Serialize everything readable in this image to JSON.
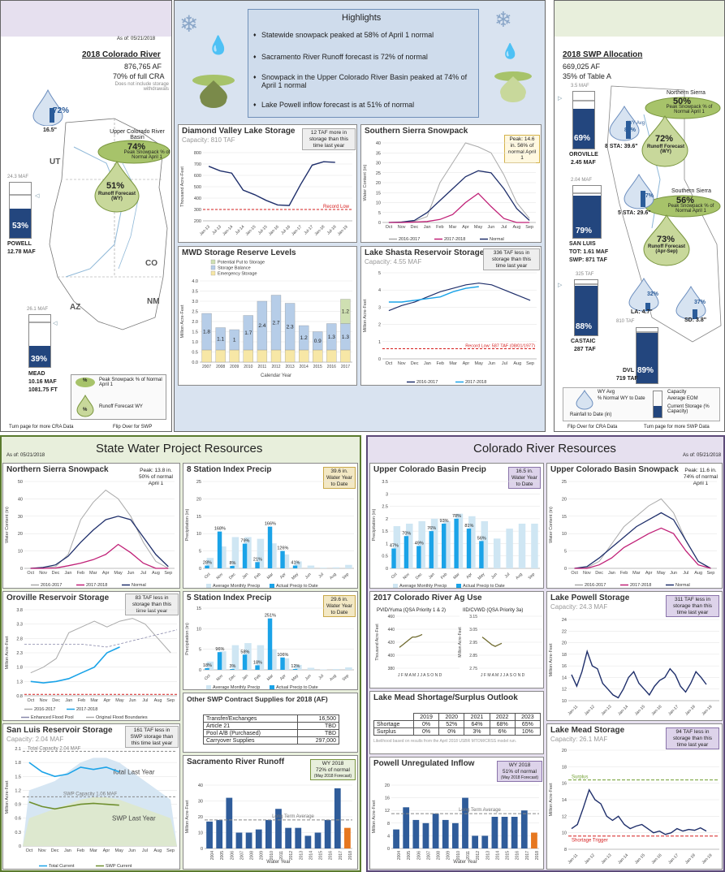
{
  "colorado_panel": {
    "as_of": "As of: 05/21/2018",
    "title": "2018 Colorado River",
    "af": "876,765 AF",
    "pct": "70% of full CRA",
    "note": "Does not include storage withdrawals",
    "precip_pct": "72%",
    "precip_in": "16.5\"",
    "upper_label": "Upper Colorado River Basin",
    "upper_pct": "74%",
    "upper_caption": "Peak Snowpack % of Normal April 1",
    "runoff_pct": "51%",
    "runoff_label": "Runoff Forecast (WY)",
    "states": [
      "UT",
      "CO",
      "AZ",
      "NM"
    ],
    "powell_cap": "24.3 MAF",
    "powell_pct": "53%",
    "powell_name": "POWELL",
    "powell_val": "12.78 MAF",
    "mead_cap": "26.1 MAF",
    "mead_pct": "39%",
    "mead_name": "MEAD",
    "mead_val": "10.16 MAF",
    "mead_ft": "1081.75 FT",
    "legend_pct1": "%",
    "legend_text1": "Peak Snowpack % of Normal April 1",
    "legend_pct2": "%",
    "legend_text2": "Runoff Forecast WY",
    "footer_left": "Turn page for more CRA Data",
    "footer_right": "Flip Over for SWP"
  },
  "highlights": {
    "title": "Highlights",
    "items": [
      "Statewide snowpack peaked at 58% of April 1 normal",
      "Sacramento River Runoff forecast is 72% of normal",
      "Snowpack in the Upper Colorado River Basin peaked at 74% of April 1 normal",
      "Lake Powell inflow forecast is at 51% of normal"
    ]
  },
  "dvl": {
    "title": "Diamond Valley Lake Storage",
    "sub": "Capacity: 810 TAF",
    "note": "12 TAF more in storage than this time last year",
    "ylabel": "Thousand Acre-Feet",
    "record": "Record Low",
    "yticks": [
      "800",
      "700",
      "600",
      "500",
      "400",
      "300",
      "200"
    ],
    "xticks": [
      "Jan-13",
      "Jul-13",
      "Jan-14",
      "Jul-14",
      "Jan-15",
      "Jul-15",
      "Jan-16",
      "Jul-16",
      "Jan-17",
      "Jul-17",
      "Jan-18",
      "Jul-18",
      "Jan-19"
    ]
  },
  "sss": {
    "title": "Southern Sierra Snowpack",
    "note": "Peak: 14.6 in. 56% of normal April 1",
    "ylabel": "Water Content (in)",
    "yticks": [
      "40",
      "35",
      "30",
      "25",
      "20",
      "15",
      "10",
      "5",
      "0"
    ],
    "xticks": [
      "Oct",
      "Nov",
      "Dec",
      "Jan",
      "Feb",
      "Mar",
      "Apr",
      "May",
      "Jun",
      "Jul",
      "Aug",
      "Sep"
    ],
    "legend": [
      "2016-2017",
      "2017-2018",
      "Normal"
    ]
  },
  "mwd": {
    "title": "MWD Storage Reserve Levels",
    "legend": [
      "Potential Put to Storage",
      "Storage Balance",
      "Emergency Storage"
    ],
    "ylabel": "Million Acre-Feet",
    "xlabel": "Calendar Year",
    "yticks": [
      "4.0",
      "3.5",
      "3.0",
      "2.5",
      "2.0",
      "1.5",
      "1.0",
      "0.5",
      "0.0"
    ]
  },
  "shasta": {
    "title": "Lake Shasta Reservoir Storage",
    "sub": "Capacity: 4.55 MAF",
    "note": "336 TAF less in storage than this time last year",
    "ylabel": "Million Acre-Feet",
    "record": "Record Low: 587 TAF (08/01/1977)",
    "yticks": [
      "5",
      "4",
      "3",
      "2",
      "1",
      "0"
    ],
    "xticks": [
      "Oct",
      "Nov",
      "Dec",
      "Jan",
      "Feb",
      "Mar",
      "Apr",
      "May",
      "Jun",
      "Jul",
      "Aug",
      "Sep"
    ],
    "legend": [
      "2016-2017",
      "2017-2018"
    ]
  },
  "swp_panel": {
    "title": "2018 SWP Allocation",
    "af": "669,025 AF",
    "pct": "35% of Table A",
    "ns_label": "Northern Sierra",
    "ns_pct": "50%",
    "ns_caption": "Peak Snowpack % of Normal April 1",
    "ns_runoff": "72%",
    "ns_runoff_label": "Runoff Forecast (WY)",
    "ss_label": "Southern Sierra",
    "ss_pct": "56%",
    "ss_caption": "Peak Snowpack % of Normal April 1",
    "ss_runoff": "73%",
    "ss_runoff_label": "Runoff Forecast (Apr-Sep)",
    "sta8": "8 STA: 39.6\"",
    "sta8_pct": "81%",
    "sta5": "5 STA: 29.6\"",
    "sta5_pct": "77%",
    "la": "LA: 4.7\"",
    "la_pct": "32%",
    "sd": "SD: 3.8\"",
    "sd_pct": "37%",
    "wy_avg": "WY Avg",
    "oro_cap": "3.5 MAF",
    "oro_pct": "69%",
    "oro_name": "OROVILLE",
    "oro_val": "2.45 MAF",
    "sl_cap": "2.04 MAF",
    "sl_pct": "79%",
    "sl_name": "SAN LUIS",
    "sl_tot": "TOT:  1.61 MAF",
    "sl_swp": "SWP:  871 TAF",
    "cas_cap": "325 TAF",
    "cas_pct": "88%",
    "cas_name": "CASTAIC",
    "cas_val": "287 TAF",
    "dvl_cap": "810 TAF",
    "dvl_pct": "89%",
    "dvl_name": "DVL",
    "dvl_val": "719 TAF",
    "leg_pct": "% Normal WY to Date",
    "leg_rain": "Rainfall to Date (in)",
    "leg_cap": "Capacity",
    "leg_eom": "Average EOM",
    "leg_cur": "Current Storage (% Capacity)",
    "footer_left": "Flip Over for CRA Data",
    "footer_right": "Turn page for more SWP Data"
  },
  "swp_res": {
    "banner": "State Water Project Resources",
    "as_of": "As of: 05/21/2018"
  },
  "cra_res": {
    "banner": "Colorado River Resources",
    "as_of": "As of: 05/21/2018"
  },
  "nss": {
    "title": "Northern Sierra Snowpack",
    "note": "Peak: 13.8 in. 50% of normal April 1",
    "ylabel": "Water Content (in)",
    "yticks": [
      "50",
      "40",
      "30",
      "20",
      "10",
      "0"
    ],
    "xticks": [
      "Oct",
      "Nov",
      "Dec",
      "Jan",
      "Feb",
      "Mar",
      "Apr",
      "May",
      "Jun",
      "Jul",
      "Aug",
      "Sep"
    ],
    "legend": [
      "2016-2017",
      "2017-2018",
      "Normal"
    ]
  },
  "p8": {
    "title": "8 Station Index Precip",
    "note": "39.6 in. Water Year to Date",
    "ylabel": "Precipitation (in)",
    "yticks": [
      "25",
      "20",
      "15",
      "10",
      "5",
      "0"
    ],
    "xticks": [
      "Oct",
      "Nov",
      "Dec",
      "Jan",
      "Feb",
      "Mar",
      "Apr",
      "May",
      "Jun",
      "Jul",
      "Aug",
      "Sep"
    ],
    "legend": [
      "Average Monthly Precip",
      "Actual Precip to Date"
    ]
  },
  "oro": {
    "title": "Oroville Reservoir Storage",
    "note": "83 TAF less in storage than this time last year",
    "ylabel": "Million Acre-Feet",
    "yticks": [
      "3.8",
      "3.3",
      "2.8",
      "2.3",
      "1.8",
      "1.3",
      "0.8"
    ],
    "xticks": [
      "Oct",
      "Nov",
      "Dec",
      "Jan",
      "Feb",
      "Mar",
      "Apr",
      "May",
      "Jun",
      "Jul",
      "Aug",
      "Sep"
    ],
    "legend": [
      "2016-2017",
      "2017-2018",
      "Enhanced Flood Pool",
      "Original Flood Boundaries"
    ]
  },
  "p5": {
    "title": "5 Station Index Precip",
    "note": "29.6 in. Water Year to Date",
    "ylabel": "Precipitation (in)",
    "yticks": [
      "15",
      "10",
      "5",
      "0"
    ],
    "xticks": [
      "Oct",
      "Nov",
      "Dec",
      "Jan",
      "Feb",
      "Mar",
      "Apr",
      "May",
      "Jun",
      "Jul",
      "Aug",
      "Sep"
    ],
    "legend": [
      "Average Monthly Precip",
      "Actual Precip to Date"
    ]
  },
  "sl": {
    "title": "San Luis Reservoir Storage",
    "sub": "Capacity: 2.04 MAF",
    "note": "161 TAF less in SWP storage than this time last year",
    "ylabel": "Million Acre-Feet",
    "total_cap": "Total Capacity 2.04 MAF",
    "swp_cap": "SWP Capacity 1.06 MAF",
    "total_last": "Total Last Year",
    "swp_last": "SWP Last Year",
    "yticks": [
      "2.1",
      "1.8",
      "1.5",
      "1.2",
      "0.9",
      "0.6",
      "0.3",
      "0"
    ],
    "xticks": [
      "Oct",
      "Nov",
      "Dec",
      "Jan",
      "Feb",
      "Mar",
      "Apr",
      "May",
      "Jun",
      "Jul",
      "Aug",
      "Sep"
    ],
    "legend": [
      "Total Current",
      "SWP Current"
    ]
  },
  "other": {
    "title": "Other SWP Contract Supplies for 2018 (AF)",
    "rows": [
      [
        "Transfer/Exchanges",
        "16,500"
      ],
      [
        "Article 21",
        "TBD"
      ],
      [
        "Pool A/B (Purchased)",
        "TBD"
      ],
      [
        "Carryover Supplies",
        "297,000"
      ]
    ]
  },
  "sac": {
    "title": "Sacramento River Runoff",
    "note1": "WY 2018",
    "note2": "72% of normal",
    "note3": "(May 2018 Forecast)",
    "avg": "Long Term Average",
    "ylabel": "Million Acre-Feet",
    "xlabel": "Water Year",
    "yticks": [
      "40",
      "30",
      "20",
      "10",
      "0"
    ]
  },
  "ucp": {
    "title": "Upper Colorado Basin Precip",
    "note": "16.5 in. Water Year to Date",
    "ylabel": "Precipitation (in)",
    "yticks": [
      "3.5",
      "3",
      "2.5",
      "2",
      "1.5",
      "1",
      "0.5",
      "0"
    ],
    "xticks": [
      "Oct",
      "Nov",
      "Dec",
      "Jan",
      "Feb",
      "Mar",
      "Apr",
      "May",
      "Jun",
      "Jul",
      "Aug",
      "Sep"
    ],
    "legend": [
      "Average Monthly Precip",
      "Actual Precip to Date"
    ]
  },
  "ucs": {
    "title": "Upper Colorado Basin Snowpack",
    "note": "Peak: 11.6 in. 74% of normal April 1",
    "ylabel": "Water Content (in)",
    "yticks": [
      "25",
      "20",
      "15",
      "10",
      "5",
      "0"
    ],
    "xticks": [
      "Oct",
      "Nov",
      "Dec",
      "Jan",
      "Feb",
      "Mar",
      "Apr",
      "May",
      "Jun",
      "Jul",
      "Aug",
      "Sep"
    ],
    "legend": [
      "2016-2017",
      "2017-2018",
      "Normal"
    ]
  },
  "ag": {
    "title": "2017 Colorado River Ag Use",
    "p1": "PVID/Yuma (QSA Priority 1 & 2)",
    "p2": "IID/CVWD (QSA Priority 3a)",
    "y1": "Thousand Acre-Feet",
    "y2": "Million Acre-Feet",
    "y1t": [
      "460",
      "440",
      "420",
      "400",
      "380"
    ],
    "y2t": [
      "3.15",
      "3.05",
      "2.95",
      "2.85",
      "2.75"
    ],
    "months": "J F M A M J J A S O N D"
  },
  "powell": {
    "title": "Lake Powell Storage",
    "sub": "Capacity: 24.3 MAF",
    "note": "311 TAF less in storage than this time last year",
    "ylabel": "Million Acre-Feet",
    "yticks": [
      "24",
      "22",
      "20",
      "18",
      "16",
      "14",
      "12",
      "10"
    ],
    "xticks": [
      "Jan-11",
      "Jan-12",
      "Jan-13",
      "Jan-14",
      "Jan-15",
      "Jan-16",
      "Jan-17",
      "Jan-18",
      "Jan-19"
    ]
  },
  "outlook": {
    "title": "Lake Mead Shortage/Surplus Outlook",
    "years": [
      "2019",
      "2020",
      "2021",
      "2022",
      "2023"
    ],
    "rows": [
      [
        "Shortage",
        "0%",
        "52%",
        "64%",
        "68%",
        "65%"
      ],
      [
        "Surplus",
        "0%",
        "0%",
        "3%",
        "6%",
        "10%"
      ]
    ],
    "foot": "Likelihood based on results from the April 2018 USBR MTOM/CRSS model run."
  },
  "pui": {
    "title": "Powell Unregulated Inflow",
    "note1": "WY 2018",
    "note2": "51% of normal",
    "note3": "(May 2018 Forecast)",
    "avg": "Long Term Average",
    "ylabel": "Million Acre-Feet",
    "xlabel": "Water Year",
    "yticks": [
      "20",
      "16",
      "12",
      "8",
      "4",
      "0"
    ]
  },
  "mead": {
    "title": "Lake Mead Storage",
    "sub": "Capacity: 26.1 MAF",
    "note": "94 TAF less in storage than this time last year",
    "ylabel": "Million Acre-Feet",
    "surplus": "Surplus",
    "shortage": "Shortage Trigger",
    "yticks": [
      "20",
      "18",
      "16",
      "14",
      "12",
      "10",
      "8"
    ],
    "xticks": [
      "Jan-11",
      "Jan-12",
      "Jan-13",
      "Jan-14",
      "Jan-15",
      "Jan-16",
      "Jan-17",
      "Jan-18",
      "Jan-19"
    ]
  },
  "chart_data": [
    {
      "id": "dvl",
      "type": "line",
      "title": "Diamond Valley Lake Storage",
      "ylabel": "Thousand Acre-Feet",
      "ylim": [
        200,
        800
      ],
      "x": [
        "Jan-13",
        "Jul-13",
        "Jan-14",
        "Jul-14",
        "Jan-15",
        "Jul-15",
        "Jan-16",
        "Jul-16",
        "Jan-17",
        "Jul-17",
        "Jan-18",
        "Jul-18"
      ],
      "series": [
        {
          "values": [
            680,
            640,
            620,
            470,
            430,
            380,
            340,
            335,
            520,
            690,
            720,
            715
          ]
        }
      ],
      "record_low": 300
    },
    {
      "id": "mwd",
      "type": "bar",
      "title": "MWD Storage Reserve Levels",
      "categories": [
        "2007",
        "2008",
        "2009",
        "2010",
        "2011",
        "2012",
        "2013",
        "2014",
        "2015",
        "2016",
        "2017"
      ],
      "series": [
        {
          "name": "Emergency Storage",
          "values": [
            0.6,
            0.6,
            0.6,
            0.6,
            0.6,
            0.6,
            0.6,
            0.6,
            0.6,
            0.6,
            0.6
          ]
        },
        {
          "name": "Storage Balance",
          "values": [
            1.8,
            1.1,
            1.0,
            1.7,
            2.4,
            2.7,
            2.3,
            1.2,
            0.9,
            1.3,
            1.3
          ]
        },
        {
          "name": "Potential Put to Storage",
          "values": [
            0,
            0,
            0,
            0,
            0,
            0,
            0,
            0,
            0,
            0,
            1.2
          ]
        }
      ],
      "ylim": [
        0,
        4
      ]
    },
    {
      "id": "p8",
      "type": "bar",
      "title": "8 Station Index Precip",
      "categories": [
        "Oct",
        "Nov",
        "Dec",
        "Jan",
        "Feb",
        "Mar",
        "Apr",
        "May",
        "Jun",
        "Jul",
        "Aug",
        "Sep"
      ],
      "series": [
        {
          "name": "Average Monthly Precip",
          "values": [
            3.0,
            6.3,
            9.0,
            9.0,
            8.5,
            7.2,
            4.0,
            2.0,
            0.8,
            0.2,
            0.3,
            1.0
          ]
        },
        {
          "name": "Actual Precip to Date",
          "values": [
            0.8,
            10.6,
            0.7,
            7.1,
            1.8,
            12.0,
            5.0,
            0.8,
            0,
            0,
            0,
            0
          ]
        }
      ],
      "labels": [
        "28%",
        "168%",
        "8%",
        "79%",
        "21%",
        "166%",
        "126%",
        "41%"
      ],
      "ylim": [
        0,
        25
      ]
    },
    {
      "id": "p5",
      "type": "bar",
      "title": "5 Station Index Precip",
      "categories": [
        "Oct",
        "Nov",
        "Dec",
        "Jan",
        "Feb",
        "Mar",
        "Apr",
        "May",
        "Jun",
        "Jul",
        "Aug",
        "Sep"
      ],
      "series": [
        {
          "name": "Average Monthly Precip",
          "values": [
            2.0,
            4.5,
            6.0,
            6.5,
            6.0,
            5.0,
            2.8,
            1.2,
            0.5,
            0.1,
            0.2,
            0.6
          ]
        },
        {
          "name": "Actual Precip to Date",
          "values": [
            0.4,
            4.3,
            0.2,
            3.7,
            1.1,
            12.5,
            3.0,
            0.2,
            0,
            0,
            0,
            0
          ]
        }
      ],
      "labels": [
        "18%",
        "96%",
        "3%",
        "58%",
        "18%",
        "251%",
        "106%",
        "12%"
      ],
      "ylim": [
        0,
        15
      ]
    },
    {
      "id": "ucp",
      "type": "bar",
      "title": "Upper Colorado Basin Precip",
      "categories": [
        "Oct",
        "Nov",
        "Dec",
        "Jan",
        "Feb",
        "Mar",
        "Apr",
        "May",
        "Jun",
        "Jul",
        "Aug",
        "Sep"
      ],
      "series": [
        {
          "name": "Average Monthly Precip",
          "values": [
            1.7,
            1.8,
            1.9,
            2.0,
            1.9,
            2.2,
            2.1,
            1.9,
            1.2,
            1.6,
            1.8,
            1.8
          ]
        },
        {
          "name": "Actual Precip to Date",
          "values": [
            0.8,
            1.3,
            0.9,
            1.5,
            1.8,
            2.0,
            1.6,
            1.1,
            0,
            0,
            0,
            0
          ]
        }
      ],
      "labels": [
        "47%",
        "70%",
        "49%",
        "76%",
        "93%",
        "78%",
        "81%",
        "56%"
      ],
      "ylim": [
        0,
        3.5
      ]
    },
    {
      "id": "sac",
      "type": "bar",
      "title": "Sacramento River Runoff",
      "categories": [
        "2004",
        "2005",
        "2006",
        "2007",
        "2008",
        "2009",
        "2010",
        "2011",
        "2012",
        "2013",
        "2014",
        "2015",
        "2016",
        "2017",
        "2018"
      ],
      "values": [
        17,
        18,
        32,
        10,
        10,
        12,
        18,
        25,
        13,
        13,
        8,
        10,
        18,
        38,
        13
      ],
      "long_term_average": 18,
      "ylim": [
        0,
        40
      ]
    },
    {
      "id": "pui",
      "type": "bar",
      "title": "Powell Unregulated Inflow",
      "categories": [
        "2004",
        "2005",
        "2006",
        "2007",
        "2008",
        "2009",
        "2010",
        "2011",
        "2012",
        "2013",
        "2014",
        "2015",
        "2016",
        "2017",
        "2018"
      ],
      "values": [
        6,
        13,
        9,
        8,
        11,
        9,
        8,
        16,
        4,
        4,
        10,
        10,
        10,
        12,
        5
      ],
      "long_term_average": 11,
      "ylim": [
        0,
        20
      ]
    }
  ]
}
